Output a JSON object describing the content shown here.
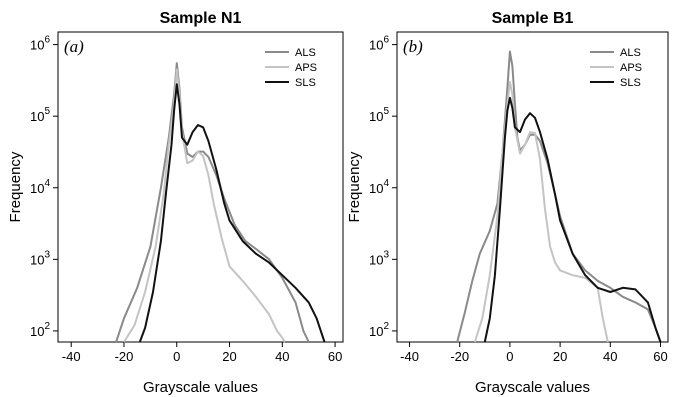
{
  "chart_data": [
    {
      "type": "line",
      "title": "Sample N1",
      "panel_label": "(a)",
      "xlabel": "Grayscale values",
      "ylabel": "Frequency",
      "xlim": [
        -45,
        63
      ],
      "ylim": [
        70,
        1500000
      ],
      "yscale": "log",
      "x_ticks": [
        -40,
        -20,
        0,
        20,
        40,
        60
      ],
      "y_ticks": [
        100,
        1000,
        10000,
        100000,
        1000000
      ],
      "y_tick_labels": [
        {
          "base": "10",
          "exp": "2"
        },
        {
          "base": "10",
          "exp": "3"
        },
        {
          "base": "10",
          "exp": "4"
        },
        {
          "base": "10",
          "exp": "5"
        },
        {
          "base": "10",
          "exp": "6"
        }
      ],
      "legend_position": "top-right",
      "series": [
        {
          "name": "ALS",
          "color": "#8a8a8a",
          "x": [
            -23,
            -20,
            -15,
            -10,
            -6,
            -3,
            -1,
            0,
            1,
            2,
            4,
            6,
            8,
            10,
            12,
            15,
            18,
            22,
            26,
            30,
            35,
            40,
            45,
            48,
            50
          ],
          "y": [
            70,
            150,
            400,
            1500,
            10000,
            50000,
            200000,
            550000,
            250000,
            70000,
            30000,
            27000,
            32000,
            32000,
            27000,
            15000,
            7000,
            3000,
            1800,
            1400,
            1000,
            550,
            250,
            100,
            70
          ]
        },
        {
          "name": "APS",
          "color": "#c4c4c4",
          "x": [
            -20,
            -16,
            -12,
            -8,
            -5,
            -3,
            -1,
            0,
            1,
            2,
            4,
            6,
            8,
            10,
            12,
            14,
            17,
            20,
            25,
            30,
            35,
            38,
            40,
            41
          ],
          "y": [
            70,
            120,
            350,
            1500,
            8000,
            40000,
            150000,
            450000,
            200000,
            60000,
            22000,
            24000,
            32000,
            28000,
            15000,
            6000,
            2000,
            800,
            500,
            300,
            170,
            100,
            80,
            70
          ]
        },
        {
          "name": "SLS",
          "color": "#111111",
          "x": [
            -14,
            -12,
            -9,
            -6,
            -4,
            -2,
            -1,
            0,
            1,
            2,
            4,
            6,
            8,
            10,
            12,
            15,
            18,
            20,
            25,
            30,
            35,
            40,
            45,
            50,
            53,
            56
          ],
          "y": [
            70,
            110,
            350,
            1800,
            9000,
            40000,
            120000,
            280000,
            150000,
            50000,
            40000,
            60000,
            75000,
            70000,
            45000,
            18000,
            6000,
            3500,
            1800,
            1200,
            900,
            600,
            400,
            250,
            150,
            70
          ]
        }
      ]
    },
    {
      "type": "line",
      "title": "Sample B1",
      "panel_label": "(b)",
      "xlabel": "Grayscale values",
      "ylabel": "Frequency",
      "xlim": [
        -45,
        63
      ],
      "ylim": [
        70,
        1500000
      ],
      "yscale": "log",
      "x_ticks": [
        -40,
        -20,
        0,
        20,
        40,
        60
      ],
      "y_ticks": [
        100,
        1000,
        10000,
        100000,
        1000000
      ],
      "y_tick_labels": [
        {
          "base": "10",
          "exp": "2"
        },
        {
          "base": "10",
          "exp": "3"
        },
        {
          "base": "10",
          "exp": "4"
        },
        {
          "base": "10",
          "exp": "5"
        },
        {
          "base": "10",
          "exp": "6"
        }
      ],
      "legend_position": "top-right",
      "series": [
        {
          "name": "ALS",
          "color": "#8a8a8a",
          "x": [
            -21,
            -18,
            -15,
            -12,
            -8,
            -5,
            -3,
            -1,
            0,
            1,
            2,
            3,
            4,
            6,
            8,
            10,
            12,
            15,
            18,
            20,
            25,
            30,
            35,
            40,
            45,
            50,
            55,
            58,
            60
          ],
          "y": [
            70,
            180,
            500,
            1200,
            2500,
            6000,
            30000,
            250000,
            800000,
            500000,
            150000,
            50000,
            33000,
            40000,
            55000,
            55000,
            45000,
            22000,
            8000,
            4000,
            1200,
            700,
            500,
            400,
            300,
            250,
            200,
            110,
            70
          ]
        },
        {
          "name": "APS",
          "color": "#c4c4c4",
          "x": [
            -14,
            -11,
            -8,
            -5,
            -3,
            -1,
            0,
            1,
            2,
            4,
            6,
            8,
            10,
            12,
            14,
            16,
            18,
            20,
            25,
            30,
            35,
            37,
            39
          ],
          "y": [
            70,
            150,
            600,
            4000,
            30000,
            150000,
            300000,
            200000,
            70000,
            30000,
            40000,
            60000,
            58000,
            25000,
            5000,
            1500,
            900,
            700,
            600,
            550,
            400,
            150,
            70
          ]
        },
        {
          "name": "SLS",
          "color": "#111111",
          "x": [
            -10,
            -8,
            -6,
            -4,
            -2,
            -1,
            0,
            1,
            2,
            4,
            6,
            8,
            10,
            12,
            15,
            18,
            20,
            25,
            30,
            35,
            40,
            45,
            50,
            55,
            58,
            60
          ],
          "y": [
            70,
            150,
            600,
            5000,
            50000,
            120000,
            180000,
            130000,
            70000,
            60000,
            90000,
            110000,
            95000,
            60000,
            25000,
            8000,
            3500,
            1200,
            600,
            400,
            350,
            400,
            380,
            250,
            110,
            70
          ]
        }
      ]
    }
  ]
}
